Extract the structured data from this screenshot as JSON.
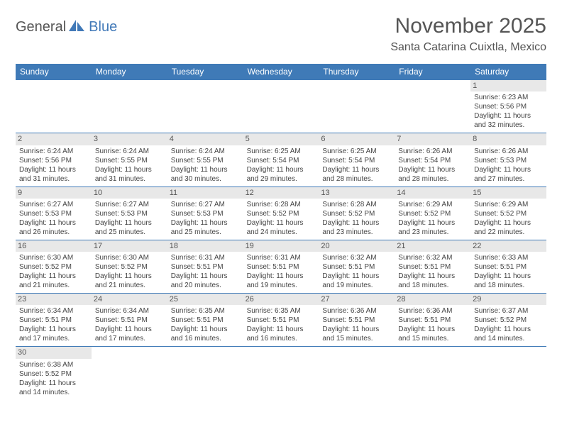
{
  "logo": {
    "part1": "General",
    "part2": "Blue"
  },
  "title": "November 2025",
  "location": "Santa Catarina Cuixtla, Mexico",
  "colors": {
    "header_bg": "#3f7ab7",
    "header_text": "#ffffff",
    "cell_border": "#3f7ab7",
    "daynum_bg": "#e8e8e8",
    "text": "#444444",
    "logo_blue": "#4179b8"
  },
  "day_headers": [
    "Sunday",
    "Monday",
    "Tuesday",
    "Wednesday",
    "Thursday",
    "Friday",
    "Saturday"
  ],
  "weeks": [
    [
      {
        "blank": true
      },
      {
        "blank": true
      },
      {
        "blank": true
      },
      {
        "blank": true
      },
      {
        "blank": true
      },
      {
        "blank": true
      },
      {
        "num": "1",
        "sunrise": "Sunrise: 6:23 AM",
        "sunset": "Sunset: 5:56 PM",
        "daylight1": "Daylight: 11 hours",
        "daylight2": "and 32 minutes."
      }
    ],
    [
      {
        "num": "2",
        "sunrise": "Sunrise: 6:24 AM",
        "sunset": "Sunset: 5:56 PM",
        "daylight1": "Daylight: 11 hours",
        "daylight2": "and 31 minutes."
      },
      {
        "num": "3",
        "sunrise": "Sunrise: 6:24 AM",
        "sunset": "Sunset: 5:55 PM",
        "daylight1": "Daylight: 11 hours",
        "daylight2": "and 31 minutes."
      },
      {
        "num": "4",
        "sunrise": "Sunrise: 6:24 AM",
        "sunset": "Sunset: 5:55 PM",
        "daylight1": "Daylight: 11 hours",
        "daylight2": "and 30 minutes."
      },
      {
        "num": "5",
        "sunrise": "Sunrise: 6:25 AM",
        "sunset": "Sunset: 5:54 PM",
        "daylight1": "Daylight: 11 hours",
        "daylight2": "and 29 minutes."
      },
      {
        "num": "6",
        "sunrise": "Sunrise: 6:25 AM",
        "sunset": "Sunset: 5:54 PM",
        "daylight1": "Daylight: 11 hours",
        "daylight2": "and 28 minutes."
      },
      {
        "num": "7",
        "sunrise": "Sunrise: 6:26 AM",
        "sunset": "Sunset: 5:54 PM",
        "daylight1": "Daylight: 11 hours",
        "daylight2": "and 28 minutes."
      },
      {
        "num": "8",
        "sunrise": "Sunrise: 6:26 AM",
        "sunset": "Sunset: 5:53 PM",
        "daylight1": "Daylight: 11 hours",
        "daylight2": "and 27 minutes."
      }
    ],
    [
      {
        "num": "9",
        "sunrise": "Sunrise: 6:27 AM",
        "sunset": "Sunset: 5:53 PM",
        "daylight1": "Daylight: 11 hours",
        "daylight2": "and 26 minutes."
      },
      {
        "num": "10",
        "sunrise": "Sunrise: 6:27 AM",
        "sunset": "Sunset: 5:53 PM",
        "daylight1": "Daylight: 11 hours",
        "daylight2": "and 25 minutes."
      },
      {
        "num": "11",
        "sunrise": "Sunrise: 6:27 AM",
        "sunset": "Sunset: 5:53 PM",
        "daylight1": "Daylight: 11 hours",
        "daylight2": "and 25 minutes."
      },
      {
        "num": "12",
        "sunrise": "Sunrise: 6:28 AM",
        "sunset": "Sunset: 5:52 PM",
        "daylight1": "Daylight: 11 hours",
        "daylight2": "and 24 minutes."
      },
      {
        "num": "13",
        "sunrise": "Sunrise: 6:28 AM",
        "sunset": "Sunset: 5:52 PM",
        "daylight1": "Daylight: 11 hours",
        "daylight2": "and 23 minutes."
      },
      {
        "num": "14",
        "sunrise": "Sunrise: 6:29 AM",
        "sunset": "Sunset: 5:52 PM",
        "daylight1": "Daylight: 11 hours",
        "daylight2": "and 23 minutes."
      },
      {
        "num": "15",
        "sunrise": "Sunrise: 6:29 AM",
        "sunset": "Sunset: 5:52 PM",
        "daylight1": "Daylight: 11 hours",
        "daylight2": "and 22 minutes."
      }
    ],
    [
      {
        "num": "16",
        "sunrise": "Sunrise: 6:30 AM",
        "sunset": "Sunset: 5:52 PM",
        "daylight1": "Daylight: 11 hours",
        "daylight2": "and 21 minutes."
      },
      {
        "num": "17",
        "sunrise": "Sunrise: 6:30 AM",
        "sunset": "Sunset: 5:52 PM",
        "daylight1": "Daylight: 11 hours",
        "daylight2": "and 21 minutes."
      },
      {
        "num": "18",
        "sunrise": "Sunrise: 6:31 AM",
        "sunset": "Sunset: 5:51 PM",
        "daylight1": "Daylight: 11 hours",
        "daylight2": "and 20 minutes."
      },
      {
        "num": "19",
        "sunrise": "Sunrise: 6:31 AM",
        "sunset": "Sunset: 5:51 PM",
        "daylight1": "Daylight: 11 hours",
        "daylight2": "and 19 minutes."
      },
      {
        "num": "20",
        "sunrise": "Sunrise: 6:32 AM",
        "sunset": "Sunset: 5:51 PM",
        "daylight1": "Daylight: 11 hours",
        "daylight2": "and 19 minutes."
      },
      {
        "num": "21",
        "sunrise": "Sunrise: 6:32 AM",
        "sunset": "Sunset: 5:51 PM",
        "daylight1": "Daylight: 11 hours",
        "daylight2": "and 18 minutes."
      },
      {
        "num": "22",
        "sunrise": "Sunrise: 6:33 AM",
        "sunset": "Sunset: 5:51 PM",
        "daylight1": "Daylight: 11 hours",
        "daylight2": "and 18 minutes."
      }
    ],
    [
      {
        "num": "23",
        "sunrise": "Sunrise: 6:34 AM",
        "sunset": "Sunset: 5:51 PM",
        "daylight1": "Daylight: 11 hours",
        "daylight2": "and 17 minutes."
      },
      {
        "num": "24",
        "sunrise": "Sunrise: 6:34 AM",
        "sunset": "Sunset: 5:51 PM",
        "daylight1": "Daylight: 11 hours",
        "daylight2": "and 17 minutes."
      },
      {
        "num": "25",
        "sunrise": "Sunrise: 6:35 AM",
        "sunset": "Sunset: 5:51 PM",
        "daylight1": "Daylight: 11 hours",
        "daylight2": "and 16 minutes."
      },
      {
        "num": "26",
        "sunrise": "Sunrise: 6:35 AM",
        "sunset": "Sunset: 5:51 PM",
        "daylight1": "Daylight: 11 hours",
        "daylight2": "and 16 minutes."
      },
      {
        "num": "27",
        "sunrise": "Sunrise: 6:36 AM",
        "sunset": "Sunset: 5:51 PM",
        "daylight1": "Daylight: 11 hours",
        "daylight2": "and 15 minutes."
      },
      {
        "num": "28",
        "sunrise": "Sunrise: 6:36 AM",
        "sunset": "Sunset: 5:51 PM",
        "daylight1": "Daylight: 11 hours",
        "daylight2": "and 15 minutes."
      },
      {
        "num": "29",
        "sunrise": "Sunrise: 6:37 AM",
        "sunset": "Sunset: 5:52 PM",
        "daylight1": "Daylight: 11 hours",
        "daylight2": "and 14 minutes."
      }
    ],
    [
      {
        "num": "30",
        "sunrise": "Sunrise: 6:38 AM",
        "sunset": "Sunset: 5:52 PM",
        "daylight1": "Daylight: 11 hours",
        "daylight2": "and 14 minutes."
      },
      {
        "blank": true
      },
      {
        "blank": true
      },
      {
        "blank": true
      },
      {
        "blank": true
      },
      {
        "blank": true
      },
      {
        "blank": true
      }
    ]
  ]
}
